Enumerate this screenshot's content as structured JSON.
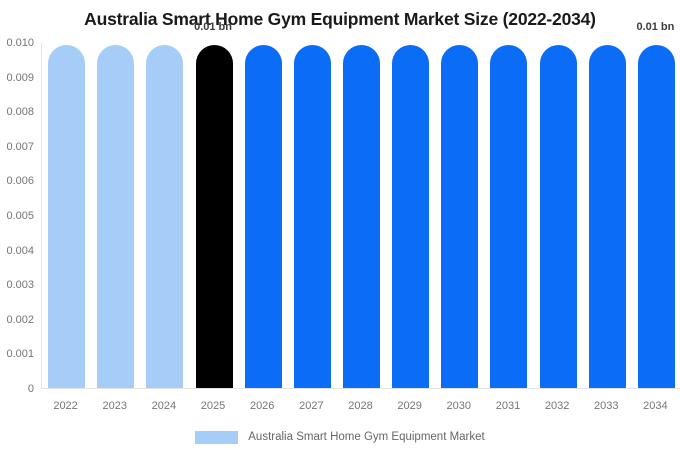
{
  "chart_data": {
    "type": "bar",
    "title": "Australia Smart Home Gym Equipment Market Size (2022-2034)",
    "categories": [
      "2022",
      "2023",
      "2024",
      "2025",
      "2026",
      "2027",
      "2028",
      "2029",
      "2030",
      "2031",
      "2032",
      "2033",
      "2034"
    ],
    "series": [
      {
        "name": "Australia Smart Home Gym Equipment Market",
        "values": [
          0.0099,
          0.0099,
          0.0099,
          0.0099,
          0.0099,
          0.0099,
          0.0099,
          0.0099,
          0.0099,
          0.0099,
          0.0099,
          0.0099,
          0.0099
        ]
      }
    ],
    "bar_colors": [
      "#a6cdf8",
      "#a6cdf8",
      "#a6cdf8",
      "#000000",
      "#0b6cf5",
      "#0b6cf5",
      "#0b6cf5",
      "#0b6cf5",
      "#0b6cf5",
      "#0b6cf5",
      "#0b6cf5",
      "#0b6cf5",
      "#0b6cf5"
    ],
    "xlabel": "",
    "ylabel": "",
    "ylim": [
      0,
      0.01
    ],
    "yticks": [
      "0",
      "0.001",
      "0.002",
      "0.003",
      "0.004",
      "0.005",
      "0.006",
      "0.007",
      "0.008",
      "0.009",
      "0.010"
    ],
    "grid": false,
    "legend_position": "bottom",
    "annotations": [
      {
        "text": "0.01 bn",
        "bar_index": 3
      },
      {
        "text": "0.01 bn",
        "bar_index": 12
      }
    ]
  },
  "legend": {
    "label": "Australia Smart Home Gym Equipment Market",
    "swatch_color": "#a6cdf8"
  },
  "colors": {
    "background": "#ffffff",
    "title_text": "#1a1a1a",
    "axis_line": "#e3e3e3",
    "axis_label_text": "#757575",
    "annotation_text": "#3d3d3d",
    "legend_text": "#666666",
    "bar_light_blue": "#a6cdf8",
    "bar_black": "#000000",
    "bar_blue": "#0b6cf5"
  }
}
